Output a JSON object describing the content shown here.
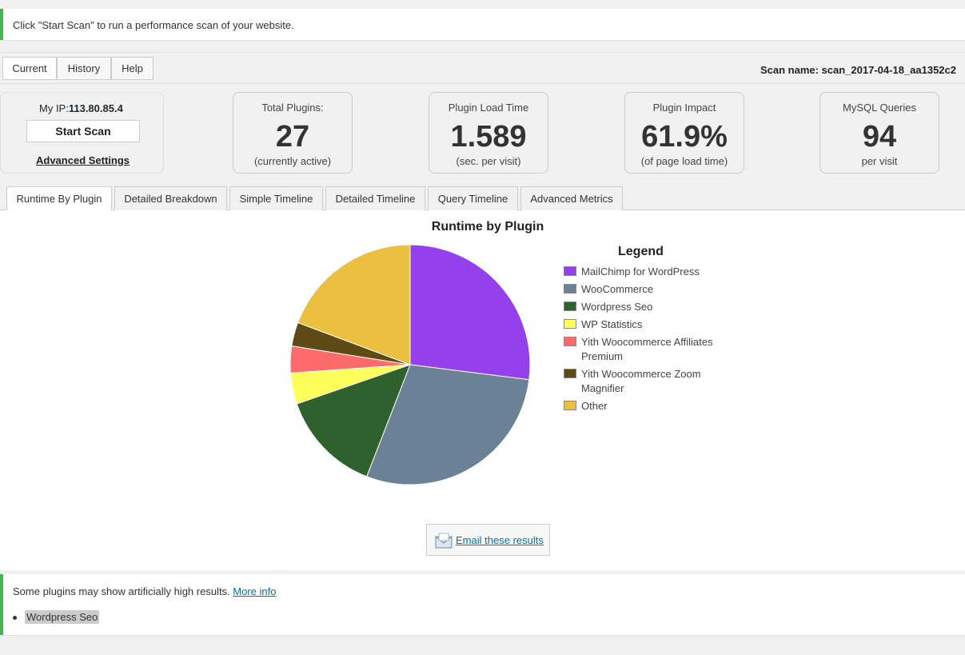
{
  "top_notice": "Click \"Start Scan\" to run a performance scan of your website.",
  "tabs": [
    "Current",
    "History",
    "Help"
  ],
  "scan_name": "Scan name: scan_2017-04-18_aa1352c2",
  "ip": {
    "label": "My IP:",
    "value": "113.80.85.4"
  },
  "start_scan_label": "Start Scan",
  "advanced_settings_label": "Advanced Settings",
  "stats": [
    {
      "label": "Total Plugins:",
      "value": "27",
      "sub": "(currently active)"
    },
    {
      "label": "Plugin Load Time",
      "value": "1.589",
      "sub": "(sec. per visit)"
    },
    {
      "label": "Plugin Impact",
      "value": "61.9%",
      "sub": "(of page load time)"
    },
    {
      "label": "MySQL Queries",
      "value": "94",
      "sub": "per visit"
    }
  ],
  "subtabs": [
    "Runtime By Plugin",
    "Detailed Breakdown",
    "Simple Timeline",
    "Detailed Timeline",
    "Query Timeline",
    "Advanced Metrics"
  ],
  "chart_data": {
    "type": "pie",
    "title": "Runtime by Plugin",
    "legend_title": "Legend",
    "legend_position": "right",
    "slices": [
      {
        "name": "MailChimp for WordPress",
        "value": 27.0,
        "color": "#9440ed"
      },
      {
        "name": "WooCommerce",
        "value": 28.9,
        "color": "#6a8196"
      },
      {
        "name": "Wordpress Seo",
        "value": 13.8,
        "color": "#2e612d"
      },
      {
        "name": "WP Statistics",
        "value": 4.2,
        "color": "#ffff5c"
      },
      {
        "name": "Yith Woocommerce Affiliates Premium",
        "value": 3.6,
        "color": "#ff6b6b"
      },
      {
        "name": "Yith Woocommerce Zoom Magnifier",
        "value": 3.2,
        "color": "#5e4a14"
      },
      {
        "name": "Other",
        "value": 19.3,
        "color": "#ebbf3f"
      }
    ]
  },
  "email_label": "Email these results",
  "bottom_notice": {
    "text": "Some plugins may show artificially high results.",
    "link": "More info",
    "items": [
      "Wordpress Seo"
    ]
  }
}
